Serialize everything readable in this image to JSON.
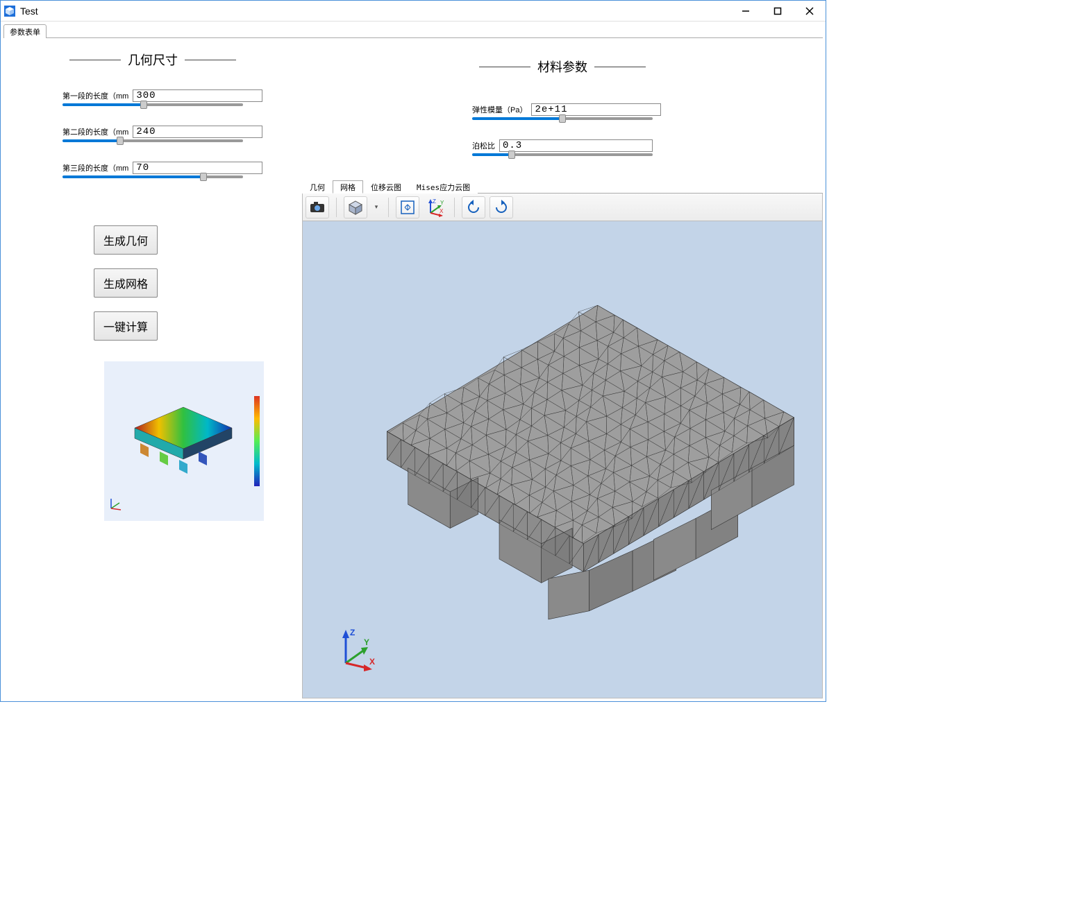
{
  "window": {
    "title": "Test",
    "icon_color": "#1e6fd9"
  },
  "main_tab": {
    "label": "参数表单"
  },
  "geometry": {
    "heading": "几何尺寸",
    "params": [
      {
        "label": "第一段的长度（mm",
        "value": "300",
        "fill_pct": 45
      },
      {
        "label": "第二段的长度（mm",
        "value": "240",
        "fill_pct": 32
      },
      {
        "label": "第三段的长度（mm",
        "value": "70",
        "fill_pct": 78
      }
    ]
  },
  "material": {
    "heading": "材料参数",
    "params": [
      {
        "label": "弹性模量（Pa）",
        "value": "2e+11",
        "fill_pct": 50
      },
      {
        "label": "泊松比",
        "value": "0.3",
        "fill_pct": 22
      }
    ]
  },
  "actions": {
    "gen_geom": "生成几何",
    "gen_mesh": "生成网格",
    "compute": "一键计算"
  },
  "viewer_tabs": {
    "geom": "几何",
    "mesh": "网格",
    "disp": "位移云图",
    "mises": "Mises应力云图",
    "active": "mesh"
  },
  "viewer": {
    "bg_color": "#c3d4e8",
    "mesh_fill": "#9e9e9e",
    "mesh_edge": "#333333",
    "toolbar_bg": "#efefef"
  },
  "axis_colors": {
    "x": "#d62728",
    "y": "#2ca02c",
    "z": "#1f4fd6"
  },
  "slider_active": "#0078d7",
  "slider_inactive": "#999999",
  "preview": {
    "bg": "#e8effa",
    "gradient": [
      "#d32",
      "#fb0",
      "#5e5",
      "#0bc",
      "#22b"
    ]
  }
}
